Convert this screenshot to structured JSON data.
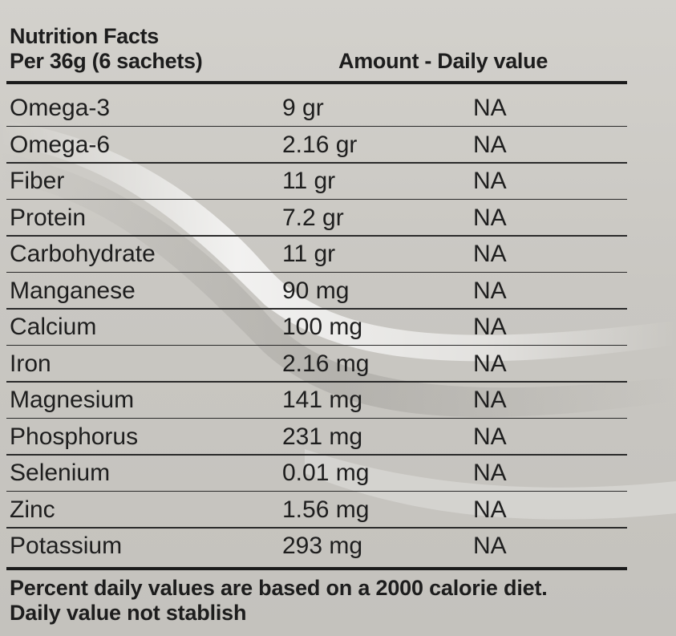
{
  "header": {
    "title": "Nutrition Facts",
    "serving": "Per 36g (6 sachets)",
    "amount_daily": "Amount - Daily value"
  },
  "rows": [
    {
      "name": "Omega-3",
      "amount": "9 gr",
      "daily": "NA"
    },
    {
      "name": "Omega-6",
      "amount": "2.16 gr",
      "daily": "NA"
    },
    {
      "name": "Fiber",
      "amount": "11 gr",
      "daily": "NA"
    },
    {
      "name": "Protein",
      "amount": "7.2 gr",
      "daily": "NA"
    },
    {
      "name": "Carbohydrate",
      "amount": "11 gr",
      "daily": "NA"
    },
    {
      "name": "Manganese",
      "amount": "90 mg",
      "daily": "NA"
    },
    {
      "name": "Calcium",
      "amount": "100 mg",
      "daily": "NA"
    },
    {
      "name": "Iron",
      "amount": "2.16 mg",
      "daily": "NA"
    },
    {
      "name": "Magnesium",
      "amount": "141 mg",
      "daily": "NA"
    },
    {
      "name": "Phosphorus",
      "amount": "231 mg",
      "daily": "NA"
    },
    {
      "name": "Selenium",
      "amount": "0.01 mg",
      "daily": "NA"
    },
    {
      "name": "Zinc",
      "amount": "1.56 mg",
      "daily": "NA"
    },
    {
      "name": "Potassium",
      "amount": "293 mg",
      "daily": "NA"
    }
  ],
  "footer": {
    "line1": "Percent daily values are based on a 2000 calorie diet.",
    "line2": "Daily value not stablish"
  }
}
